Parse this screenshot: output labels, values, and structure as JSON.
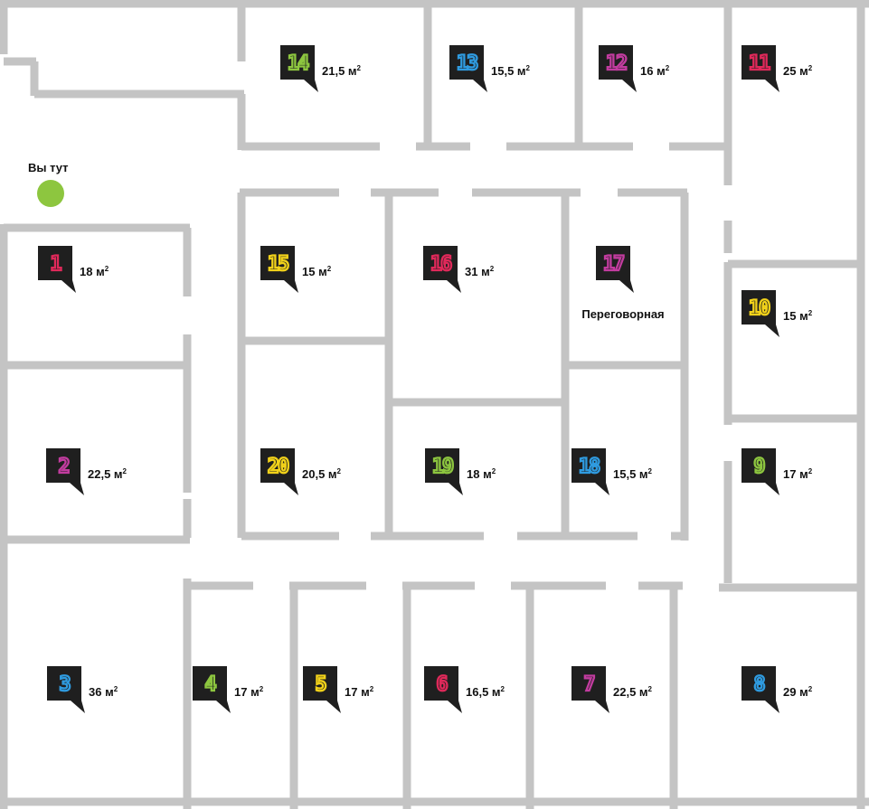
{
  "you_are_here": {
    "label": "Вы тут",
    "marker_color": "#8dc63f"
  },
  "colors": {
    "wall": "#c4c4c4",
    "badge_bg": "#1f1f1f"
  },
  "offices": [
    {
      "number": "14",
      "area": "21,5 м",
      "sup": "2",
      "color": "#8dc63f"
    },
    {
      "number": "13",
      "area": "15,5 м",
      "sup": "2",
      "color": "#2f9be0"
    },
    {
      "number": "12",
      "area": "16 м",
      "sup": "2",
      "color": "#c23c9f"
    },
    {
      "number": "11",
      "area": "25 м",
      "sup": "2",
      "color": "#e0295a"
    },
    {
      "number": "1",
      "area": "18 м",
      "sup": "2",
      "color": "#e0295a"
    },
    {
      "number": "15",
      "area": "15 м",
      "sup": "2",
      "color": "#f2d21a"
    },
    {
      "number": "16",
      "area": "31 м",
      "sup": "2",
      "color": "#e0295a"
    },
    {
      "number": "17",
      "area": "Переговорная",
      "sup": "",
      "color": "#c23c9f"
    },
    {
      "number": "10",
      "area": "15 м",
      "sup": "2",
      "color": "#f2d21a"
    },
    {
      "number": "2",
      "area": "22,5 м",
      "sup": "2",
      "color": "#c23c9f"
    },
    {
      "number": "20",
      "area": "20,5 м",
      "sup": "2",
      "color": "#f2d21a"
    },
    {
      "number": "19",
      "area": "18 м",
      "sup": "2",
      "color": "#8dc63f"
    },
    {
      "number": "18",
      "area": "15,5 м",
      "sup": "2",
      "color": "#2f9be0"
    },
    {
      "number": "9",
      "area": "17 м",
      "sup": "2",
      "color": "#8dc63f"
    },
    {
      "number": "3",
      "area": "36 м",
      "sup": "2",
      "color": "#2f9be0"
    },
    {
      "number": "4",
      "area": "17 м",
      "sup": "2",
      "color": "#8dc63f"
    },
    {
      "number": "5",
      "area": "17 м",
      "sup": "2",
      "color": "#f2d21a"
    },
    {
      "number": "6",
      "area": "16,5 м",
      "sup": "2",
      "color": "#e0295a"
    },
    {
      "number": "7",
      "area": "22,5 м",
      "sup": "2",
      "color": "#c23c9f"
    },
    {
      "number": "8",
      "area": "29 м",
      "sup": "2",
      "color": "#2f9be0"
    }
  ]
}
